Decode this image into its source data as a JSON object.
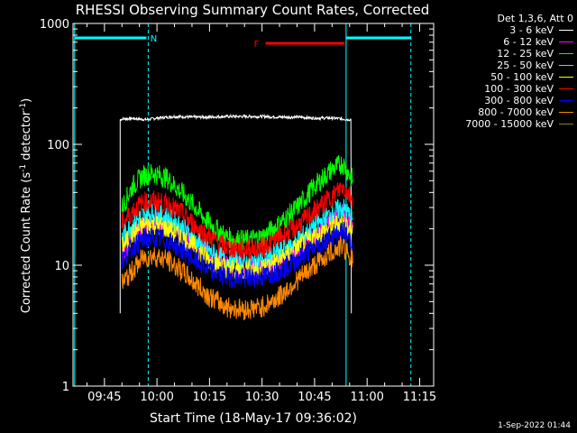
{
  "chart_data": {
    "type": "line",
    "title": "RHESSI Observing Summary Count Rates, Corrected",
    "xlabel": "Start Time (18-May-17 09:36:02)",
    "ylabel": "Corrected Count Rate (s",
    "ylabel_sup": "-1",
    "ylabel_mid": " detector",
    "ylabel_tail": ")",
    "yscale": "log",
    "ylim": [
      1,
      1000
    ],
    "y_ticks": [
      "1",
      "10",
      "100",
      "1000"
    ],
    "x_ticks": [
      "09:45",
      "10:00",
      "10:15",
      "10:30",
      "10:45",
      "11:00",
      "11:15"
    ],
    "x_tick_minutes": [
      585,
      600,
      615,
      630,
      645,
      660,
      675
    ],
    "xlim_minutes": [
      576.03,
      679.0
    ],
    "legend_header": "Det 1,3,6, Att 0",
    "series": [
      {
        "name": "3 - 6 keV",
        "color": "#ffffff",
        "x": [
          589.5,
          590,
          593,
          597,
          600,
          605,
          610,
          615,
          620,
          625,
          630,
          635,
          640,
          645,
          650,
          655.5
        ],
        "y": [
          160,
          162,
          164,
          160,
          165,
          170,
          168,
          168,
          170,
          170,
          170,
          168,
          168,
          165,
          165,
          160
        ]
      },
      {
        "name": "6 - 12 keV",
        "color": "#ff00ff",
        "x": [
          590,
          593,
          596,
          599,
          603,
          607,
          611,
          615,
          620,
          625,
          630,
          635,
          640,
          645,
          650,
          653,
          656
        ],
        "y": [
          12,
          17,
          22,
          24,
          22,
          19,
          15,
          12,
          10,
          9.5,
          9.8,
          11,
          14,
          18,
          24,
          27,
          22
        ]
      },
      {
        "name": "12 - 25 keV",
        "color": "#00ff00",
        "x": [
          590,
          593,
          596,
          599,
          603,
          607,
          611,
          615,
          620,
          625,
          630,
          635,
          640,
          645,
          650,
          653,
          656
        ],
        "y": [
          30,
          45,
          55,
          58,
          52,
          40,
          30,
          22,
          17,
          16,
          17,
          22,
          30,
          45,
          62,
          70,
          50
        ]
      },
      {
        "name": "25 - 50 keV",
        "color": "#00ffff",
        "x": [
          590,
          593,
          596,
          599,
          603,
          607,
          611,
          615,
          620,
          625,
          630,
          635,
          640,
          645,
          650,
          653,
          656
        ],
        "y": [
          17,
          22,
          26,
          27,
          25,
          21,
          16,
          13,
          11,
          10.5,
          11,
          13,
          16,
          21,
          27,
          30,
          24
        ]
      },
      {
        "name": "50 - 100 keV",
        "color": "#ffff00",
        "x": [
          590,
          593,
          596,
          599,
          603,
          607,
          611,
          615,
          620,
          625,
          630,
          635,
          640,
          645,
          650,
          653,
          656
        ],
        "y": [
          14,
          18,
          21,
          22,
          20,
          17,
          14,
          11,
          9.5,
          9,
          9.5,
          11,
          14,
          17,
          21,
          23,
          19
        ]
      },
      {
        "name": "100 - 300 keV",
        "color": "#ff0000",
        "x": [
          590,
          593,
          596,
          599,
          603,
          607,
          611,
          615,
          620,
          625,
          630,
          635,
          640,
          645,
          650,
          653,
          656
        ],
        "y": [
          22,
          28,
          33,
          34,
          32,
          27,
          21,
          17,
          14,
          13.5,
          14,
          17,
          21,
          28,
          37,
          45,
          35
        ]
      },
      {
        "name": "300 - 800 keV",
        "color": "#0000ff",
        "x": [
          590,
          593,
          596,
          599,
          603,
          607,
          611,
          615,
          620,
          625,
          630,
          635,
          640,
          645,
          650,
          653,
          656
        ],
        "y": [
          11,
          14,
          16.5,
          17,
          16,
          13.5,
          11,
          9,
          8,
          7.8,
          8,
          9,
          11,
          14,
          17,
          19,
          15
        ]
      },
      {
        "name": "800 - 7000 keV",
        "color": "#ff8800",
        "x": [
          590,
          593,
          596,
          599,
          603,
          607,
          611,
          615,
          620,
          625,
          630,
          635,
          640,
          645,
          650,
          653,
          656
        ],
        "y": [
          7,
          9,
          11.5,
          12,
          11,
          9,
          7,
          5.5,
          4.5,
          4.3,
          4.5,
          5.5,
          7.5,
          10,
          13,
          14.5,
          11
        ]
      },
      {
        "name": "7000 - 15000 keV",
        "color": "#888800",
        "x": [],
        "y": []
      }
    ],
    "annotations": [
      {
        "label": "N",
        "color": "#00ffff",
        "x_start": 576.5,
        "x_end": 597,
        "y": 800
      },
      {
        "label": "F",
        "color": "#ff0000",
        "x_start": 631,
        "x_end": 653.5,
        "y": 700
      }
    ],
    "cyan_solid_lines_minutes": [
      576.5,
      654
    ],
    "cyan_dashed_lines_minutes": [
      597.5,
      672.5
    ],
    "bar_right_minutes": [
      654,
      672.5
    ],
    "footer": "1-Sep-2022 01:44"
  }
}
